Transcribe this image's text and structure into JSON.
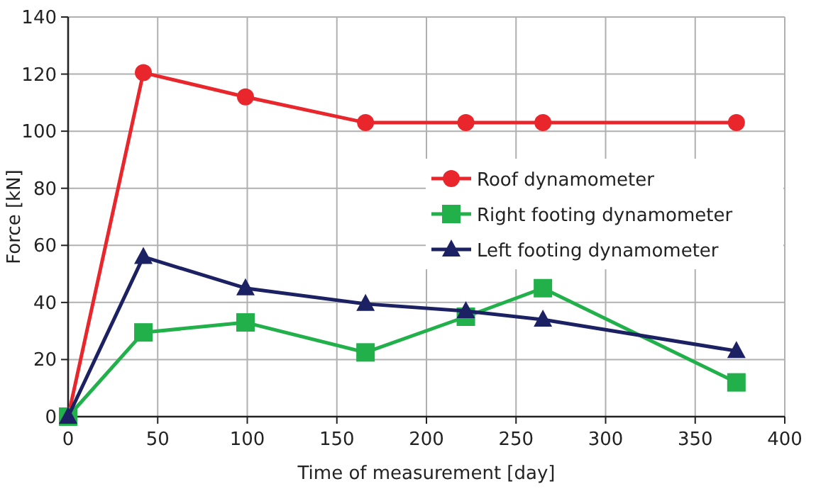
{
  "chart_data": {
    "type": "line",
    "xlabel": "Time of measurement [day]",
    "ylabel": "Force [kN]",
    "x": [
      0,
      42,
      99,
      166,
      222,
      265,
      373
    ],
    "series": [
      {
        "name": "Roof dynamometer",
        "color": "#e8262b",
        "marker": "circle",
        "values": [
          0,
          120.5,
          112,
          103,
          103,
          103,
          103
        ]
      },
      {
        "name": "Right footing dynamometer",
        "color": "#22b04b",
        "marker": "square",
        "values": [
          0,
          29.5,
          33,
          22.5,
          35,
          45,
          12
        ]
      },
      {
        "name": "Left footing dynamometer",
        "color": "#1b2162",
        "marker": "triangle",
        "values": [
          0,
          56,
          45,
          39.5,
          37,
          34,
          23
        ]
      }
    ],
    "xlim": [
      0,
      400
    ],
    "xticks": [
      0,
      50,
      100,
      150,
      200,
      250,
      300,
      350,
      400
    ],
    "ylim": [
      0,
      140
    ],
    "yticks": [
      0,
      20,
      40,
      60,
      80,
      100,
      120,
      140
    ],
    "grid": true,
    "legend": "right"
  }
}
